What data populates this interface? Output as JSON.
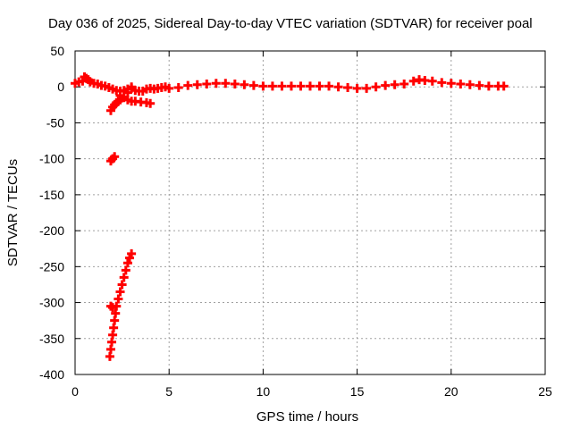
{
  "chart_data": {
    "type": "scatter",
    "title": "Day 036 of 2025, Sidereal Day-to-day VTEC variation (SDTVAR) for receiver poal",
    "xlabel": "GPS time / hours",
    "ylabel": "SDTVAR / TECUs",
    "xlim": [
      0,
      25
    ],
    "ylim": [
      -400,
      50
    ],
    "xticks": [
      0,
      5,
      10,
      15,
      20,
      25
    ],
    "xtick_labels": [
      "0",
      "5",
      "10",
      "15",
      "20",
      "25"
    ],
    "yticks": [
      50,
      0,
      -50,
      -100,
      -150,
      -200,
      -250,
      -300,
      -350,
      -400
    ],
    "ytick_labels": [
      "50",
      "0",
      "-50",
      "-100",
      "-150",
      "-200",
      "-250",
      "-300",
      "-350",
      "-400"
    ],
    "grid": true,
    "legend": "none",
    "series": [
      {
        "color": "#ff0000",
        "marker": "plus",
        "x": [
          0.0,
          0.2,
          0.4,
          0.5,
          0.6,
          0.7,
          0.8,
          1.0,
          1.2,
          1.4,
          1.6,
          1.8,
          2.0,
          2.2,
          2.4,
          2.6,
          2.8,
          3.0,
          3.2,
          3.4,
          3.6,
          3.8,
          4.0,
          4.2,
          4.4,
          4.6,
          4.8,
          5.0,
          5.5,
          6.0,
          6.5,
          7.0,
          7.5,
          8.0,
          8.5,
          9.0,
          9.5,
          10.0,
          10.5,
          11.0,
          11.5,
          12.0,
          12.5,
          13.0,
          13.5,
          14.0,
          14.5,
          15.0,
          15.5,
          16.0,
          16.5,
          17.0,
          17.5,
          18.0,
          18.3,
          18.6,
          19.0,
          19.5,
          20.0,
          20.5,
          21.0,
          21.5,
          22.0,
          22.5,
          22.8,
          2.4,
          2.6,
          2.8,
          3.0,
          3.2,
          3.5,
          3.8,
          4.0,
          1.9,
          2.0,
          2.1,
          2.2,
          2.3,
          2.4,
          2.6,
          2.8,
          3.0,
          1.9,
          2.0,
          2.1,
          1.85,
          1.9,
          1.95,
          2.0,
          2.05,
          2.1,
          2.15,
          2.2,
          2.3,
          2.4,
          2.5,
          2.6,
          2.7,
          2.8,
          2.9,
          3.0,
          1.9,
          2.0
        ],
        "y": [
          5,
          7,
          8,
          14,
          12,
          10,
          7,
          5,
          4,
          2,
          1,
          -1,
          -3,
          -5,
          -6,
          -5,
          -3,
          -2,
          -5,
          -6,
          -6,
          -3,
          -2,
          -3,
          -2,
          -1,
          0,
          -2,
          -1,
          2,
          3,
          4,
          5,
          5,
          4,
          3,
          2,
          1,
          1,
          1,
          1,
          1,
          1,
          1,
          1,
          0,
          -1,
          -2,
          -2,
          0,
          2,
          3,
          4,
          8,
          10,
          9,
          8,
          6,
          5,
          4,
          3,
          2,
          1,
          1,
          1,
          -12,
          -14,
          -18,
          -20,
          -20,
          -21,
          -22,
          -23,
          -33,
          -28,
          -25,
          -22,
          -20,
          -18,
          -15,
          -8,
          0,
          -103,
          -100,
          -97,
          -375,
          -365,
          -355,
          -345,
          -335,
          -325,
          -315,
          -305,
          -295,
          -285,
          -275,
          -265,
          -255,
          -245,
          -238,
          -232,
          -305,
          -307
        ]
      }
    ]
  }
}
